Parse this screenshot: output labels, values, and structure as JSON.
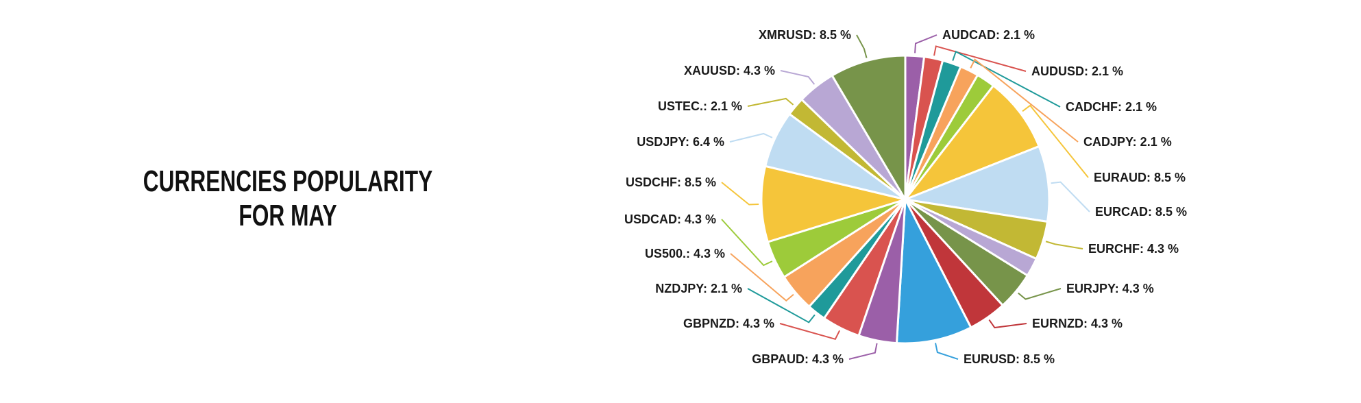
{
  "chart_data": {
    "type": "pie",
    "title": [
      "CURRENCIES POPULARITY",
      "FOR MAY"
    ],
    "unit": "%",
    "start": "top",
    "direction": "clockwise",
    "slices": [
      {
        "label": "AUDCAD",
        "value": 2.1,
        "color": "#9b5fa8"
      },
      {
        "label": "AUDUSD",
        "value": 2.1,
        "color": "#d9534f"
      },
      {
        "label": "CADCHF",
        "value": 2.1,
        "color": "#1f9a9a"
      },
      {
        "label": "CADJPY",
        "value": 2.1,
        "color": "#f7a35c"
      },
      {
        "label": "",
        "value": 2.1,
        "color": "#9dcb3a"
      },
      {
        "label": "EURAUD",
        "value": 8.5,
        "color": "#f5c53a"
      },
      {
        "label": "EURCAD",
        "value": 8.5,
        "color": "#bfdcf2"
      },
      {
        "label": "EURCHF",
        "value": 4.3,
        "color": "#c2b834"
      },
      {
        "label": "",
        "value": 2.1,
        "color": "#b8a7d4"
      },
      {
        "label": "EURJPY",
        "value": 4.3,
        "color": "#77944a"
      },
      {
        "label": "EURNZD",
        "value": 4.3,
        "color": "#c0363a"
      },
      {
        "label": "EURUSD",
        "value": 8.5,
        "color": "#35a0dc"
      },
      {
        "label": "GBPAUD",
        "value": 4.3,
        "color": "#9b5fa8"
      },
      {
        "label": "GBPNZD",
        "value": 4.3,
        "color": "#d9534f"
      },
      {
        "label": "NZDJPY",
        "value": 2.1,
        "color": "#1f9a9a"
      },
      {
        "label": "US500.",
        "value": 4.3,
        "color": "#f7a35c"
      },
      {
        "label": "USDCAD",
        "value": 4.3,
        "color": "#9dcb3a"
      },
      {
        "label": "USDCHF",
        "value": 8.5,
        "color": "#f5c53a"
      },
      {
        "label": "USDJPY",
        "value": 6.4,
        "color": "#bfdcf2"
      },
      {
        "label": "USTEC.",
        "value": 2.1,
        "color": "#c2b834"
      },
      {
        "label": "XAUUSD",
        "value": 4.3,
        "color": "#b8a7d4"
      },
      {
        "label": "XMRUSD",
        "value": 8.5,
        "color": "#77944a"
      }
    ]
  }
}
